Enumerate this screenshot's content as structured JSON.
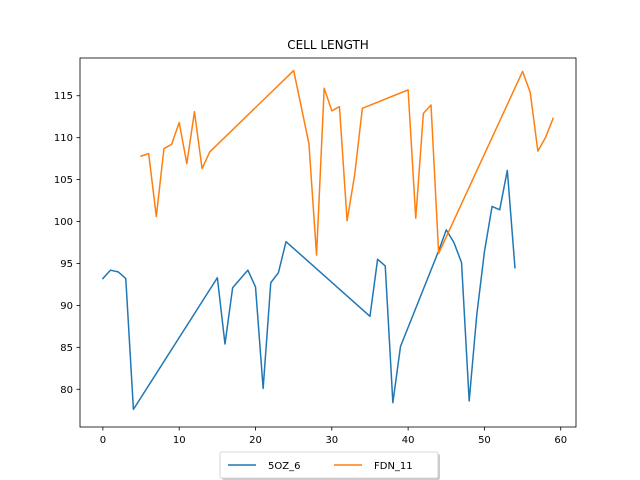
{
  "chart_data": {
    "type": "line",
    "title": "CELL LENGTH",
    "xlabel": "",
    "ylabel": "",
    "xlim": [
      -3,
      62
    ],
    "ylim": [
      75.5,
      119.5
    ],
    "xticks": [
      0,
      10,
      20,
      30,
      40,
      50,
      60
    ],
    "yticks": [
      80,
      85,
      90,
      95,
      100,
      105,
      110,
      115
    ],
    "grid": false,
    "legend_position": "bottom-center",
    "series": [
      {
        "name": "5OZ_6",
        "color": "#1f77b4",
        "points": [
          [
            0,
            93.2
          ],
          [
            1,
            94.2
          ],
          [
            2,
            94.0
          ],
          [
            3,
            93.2
          ],
          [
            4,
            77.6
          ],
          [
            15,
            93.3
          ],
          [
            16,
            85.4
          ],
          [
            17,
            92.1
          ],
          [
            19,
            94.2
          ],
          [
            20,
            92.2
          ],
          [
            21,
            80.1
          ],
          [
            22,
            92.7
          ],
          [
            23,
            93.9
          ],
          [
            24,
            97.6
          ],
          [
            35,
            88.7
          ],
          [
            36,
            95.5
          ],
          [
            37,
            94.7
          ],
          [
            38,
            78.4
          ],
          [
            39,
            85.1
          ],
          [
            44,
            96.5
          ],
          [
            45,
            99.0
          ],
          [
            46,
            97.5
          ],
          [
            47,
            95.1
          ],
          [
            48,
            78.6
          ],
          [
            49,
            88.9
          ],
          [
            50,
            96.4
          ],
          [
            51,
            101.8
          ],
          [
            52,
            101.4
          ],
          [
            53,
            106.1
          ],
          [
            54,
            94.5
          ]
        ]
      },
      {
        "name": "FDN_11",
        "color": "#ff7f0e",
        "points": [
          [
            5,
            107.8
          ],
          [
            6,
            108.1
          ],
          [
            7,
            100.6
          ],
          [
            8,
            108.7
          ],
          [
            9,
            109.2
          ],
          [
            10,
            111.8
          ],
          [
            11,
            106.9
          ],
          [
            12,
            113.1
          ],
          [
            13,
            106.3
          ],
          [
            14,
            108.3
          ],
          [
            25,
            118.0
          ],
          [
            27,
            109.3
          ],
          [
            28,
            96.0
          ],
          [
            29,
            115.9
          ],
          [
            30,
            113.2
          ],
          [
            31,
            113.7
          ],
          [
            32,
            100.1
          ],
          [
            33,
            105.6
          ],
          [
            34,
            113.5
          ],
          [
            40,
            115.7
          ],
          [
            41,
            100.4
          ],
          [
            42,
            112.9
          ],
          [
            43,
            113.9
          ],
          [
            44,
            96.2
          ],
          [
            55,
            117.9
          ],
          [
            56,
            115.4
          ],
          [
            57,
            108.4
          ],
          [
            58,
            110.0
          ],
          [
            59,
            112.3
          ]
        ]
      }
    ]
  }
}
